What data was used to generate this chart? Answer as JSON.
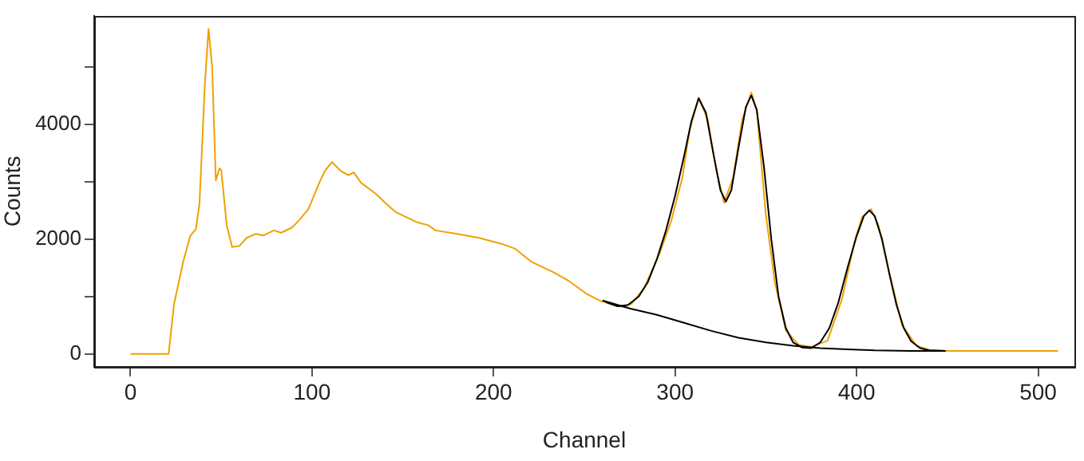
{
  "chart_data": {
    "type": "line",
    "xlabel": "Channel",
    "ylabel": "Counts",
    "xlim": [
      -20,
      520
    ],
    "ylim": [
      -227,
      5890
    ],
    "xticks": [
      0,
      100,
      200,
      300,
      400,
      500
    ],
    "yticks": [
      0,
      {
        "value": 1000,
        "label": null
      },
      2000,
      {
        "value": 3000,
        "label": null
      },
      4000,
      {
        "value": 5000,
        "label": null
      }
    ],
    "grid": false,
    "legend": false,
    "marker": "none",
    "line_style": "solid",
    "series": [
      {
        "color": "#f0a000",
        "x": [
          0,
          21,
          24,
          29,
          33,
          36,
          38,
          41,
          43,
          45,
          47,
          49,
          50,
          53,
          56,
          60,
          64,
          69,
          73,
          79,
          83,
          89,
          93,
          98,
          101,
          104,
          107,
          111,
          116,
          120,
          123,
          127,
          135,
          141,
          146,
          152,
          158,
          164,
          168,
          180,
          192,
          204,
          212,
          221,
          233,
          241,
          251,
          259,
          270,
          276,
          283,
          292,
          298,
          304,
          308,
          313,
          318,
          323,
          327,
          332,
          337,
          342,
          345,
          350,
          355,
          361,
          368,
          375,
          384,
          392,
          399,
          403,
          408,
          412,
          418,
          425,
          433,
          440,
          449,
          470,
          490,
          511
        ],
        "values": [
          0,
          0,
          870,
          1600,
          2060,
          2170,
          2610,
          4720,
          5660,
          4990,
          3020,
          3230,
          3200,
          2240,
          1860,
          1880,
          2020,
          2090,
          2060,
          2150,
          2110,
          2200,
          2330,
          2520,
          2750,
          2980,
          3180,
          3340,
          3180,
          3110,
          3160,
          2980,
          2790,
          2610,
          2470,
          2380,
          2290,
          2240,
          2150,
          2090,
          2020,
          1920,
          1830,
          1600,
          1420,
          1280,
          1050,
          920,
          820,
          870,
          1150,
          1790,
          2330,
          3070,
          3890,
          4460,
          4080,
          3160,
          2630,
          3070,
          4080,
          4550,
          4250,
          2430,
          1240,
          410,
          160,
          120,
          230,
          960,
          1970,
          2380,
          2520,
          2240,
          1420,
          500,
          140,
          70,
          50,
          50,
          50,
          50
        ]
      },
      {
        "color": "#000000",
        "x": [
          262,
          268,
          274,
          280,
          285,
          290,
          295,
          300,
          305,
          309,
          313,
          317,
          321,
          325,
          328,
          331,
          335,
          339,
          342,
          345,
          349,
          353,
          357,
          361,
          365,
          370,
          375,
          380,
          385,
          390,
          395,
          400,
          404,
          407,
          410,
          414,
          418,
          422,
          426,
          430,
          435,
          440,
          449
        ],
        "values": [
          900,
          830,
          850,
          1000,
          1250,
          1650,
          2150,
          2750,
          3450,
          4050,
          4450,
          4200,
          3500,
          2850,
          2650,
          2850,
          3600,
          4300,
          4500,
          4250,
          3250,
          2000,
          1000,
          450,
          200,
          110,
          100,
          200,
          450,
          900,
          1500,
          2050,
          2400,
          2500,
          2400,
          2000,
          1400,
          850,
          450,
          220,
          100,
          60,
          50
        ]
      },
      {
        "color": "#000000",
        "x": [
          260,
          275,
          290,
          305,
          320,
          335,
          350,
          365,
          380,
          395,
          410,
          430,
          449
        ],
        "values": [
          930,
          790,
          680,
          540,
          400,
          280,
          200,
          140,
          100,
          80,
          60,
          50,
          50
        ]
      }
    ]
  }
}
